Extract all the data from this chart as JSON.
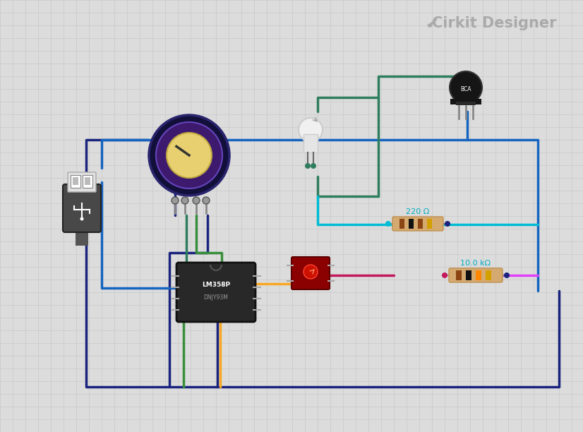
{
  "bg_color": "#dcdcdc",
  "grid_color": "#c8c8c8",
  "title_text": "Cirkit Designer",
  "title_color": "#aaaaaa",
  "wire_dark_blue": "#1a237e",
  "wire_blue": "#1565c0",
  "wire_cyan": "#00bcd4",
  "wire_teal": "#2e7d5e",
  "wire_green": "#388e3c",
  "wire_yellow": "#f9a825",
  "wire_magenta": "#c2185b",
  "wire_pink": "#e040fb",
  "resistor_220_label": "220 Ω",
  "resistor_10k_label": "10.0 kΩ",
  "resistor_label_color": "#00acc1"
}
